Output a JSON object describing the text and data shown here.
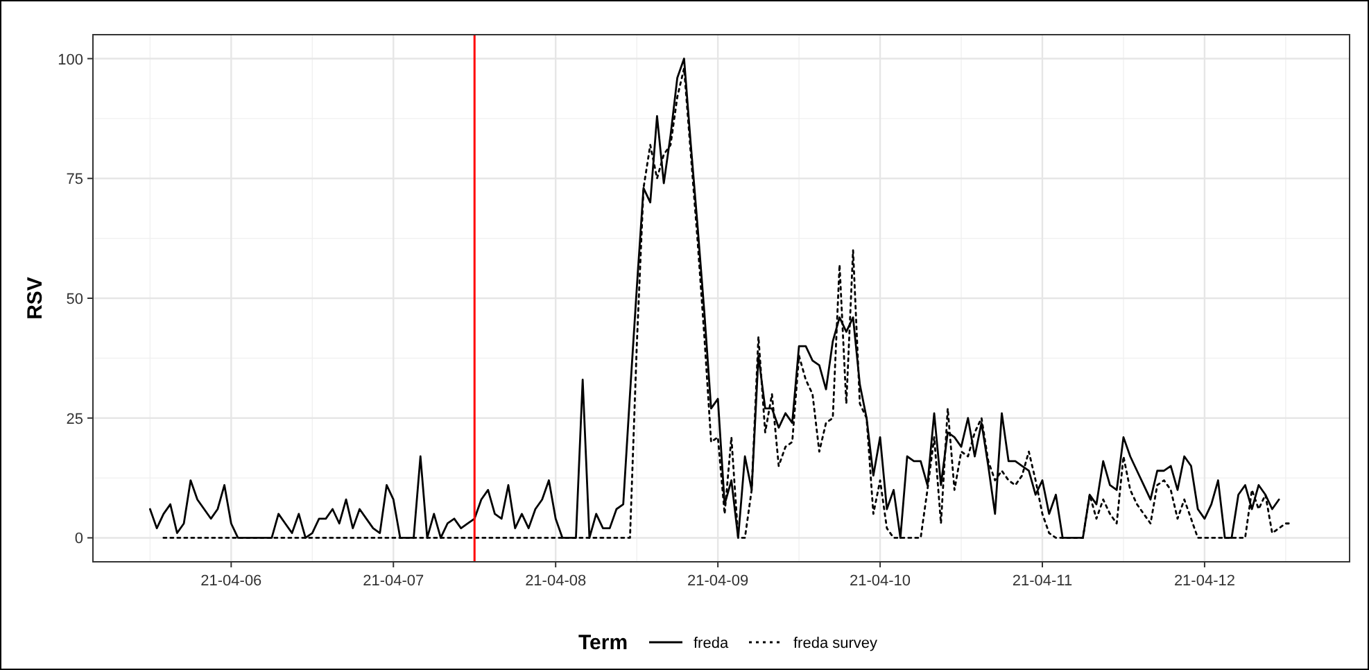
{
  "chart_data": {
    "type": "line",
    "ylabel": "RSV",
    "legend_title": "Term",
    "legend": "bottom",
    "grid": true,
    "marker": "none",
    "xlim": [
      "--04-05T03:33",
      "--04-12T21:27"
    ],
    "xticks": [
      {
        "value": "--04-06",
        "label": "21-04-06"
      },
      {
        "value": "--04-07",
        "label": "21-04-07"
      },
      {
        "value": "--04-08",
        "label": "21-04-08"
      },
      {
        "value": "--04-09",
        "label": "21-04-09"
      },
      {
        "value": "--04-10",
        "label": "21-04-10"
      },
      {
        "value": "--04-11",
        "label": "21-04-11"
      },
      {
        "value": "--04-12",
        "label": "21-04-12"
      }
    ],
    "ylim": [
      -5,
      105
    ],
    "yticks": [
      0,
      25,
      50,
      75,
      100
    ],
    "ref_lines": [
      {
        "axis": "x",
        "value": "--04-07T12:00",
        "color": "#ff0000"
      }
    ],
    "series": [
      {
        "name": "freda",
        "color": "#000000",
        "line_style": "solid",
        "x": [
          "--04-05T12:00",
          "--04-05T13:00",
          "--04-05T14:00",
          "--04-05T15:00",
          "--04-05T16:00",
          "--04-05T17:00",
          "--04-05T18:00",
          "--04-05T19:00",
          "--04-05T20:00",
          "--04-05T21:00",
          "--04-05T22:00",
          "--04-05T23:00",
          "--04-06T00:00",
          "--04-06T01:00",
          "--04-06T06:00",
          "--04-06T07:00",
          "--04-06T08:00",
          "--04-06T09:00",
          "--04-06T10:00",
          "--04-06T11:00",
          "--04-06T12:00",
          "--04-06T13:00",
          "--04-06T14:00",
          "--04-06T15:00",
          "--04-06T16:00",
          "--04-06T17:00",
          "--04-06T18:00",
          "--04-06T19:00",
          "--04-06T20:00",
          "--04-06T21:00",
          "--04-06T22:00",
          "--04-06T23:00",
          "--04-07T00:00",
          "--04-07T01:00",
          "--04-07T03:00",
          "--04-07T04:00",
          "--04-07T05:00",
          "--04-07T06:00",
          "--04-07T07:00",
          "--04-07T08:00",
          "--04-07T09:00",
          "--04-07T10:00",
          "--04-07T11:00",
          "--04-07T12:00",
          "--04-07T13:00",
          "--04-07T14:00",
          "--04-07T15:00",
          "--04-07T16:00",
          "--04-07T17:00",
          "--04-07T18:00",
          "--04-07T19:00",
          "--04-07T20:00",
          "--04-07T21:00",
          "--04-07T22:00",
          "--04-07T23:00",
          "--04-08T00:00",
          "--04-08T01:00",
          "--04-08T03:00",
          "--04-08T04:00",
          "--04-08T05:00",
          "--04-08T06:00",
          "--04-08T07:00",
          "--04-08T08:00",
          "--04-08T09:00",
          "--04-08T10:00",
          "--04-08T11:00",
          "--04-08T12:00",
          "--04-08T13:00",
          "--04-08T14:00",
          "--04-08T15:00",
          "--04-08T16:00",
          "--04-08T17:00",
          "--04-08T18:00",
          "--04-08T19:00",
          "--04-08T20:00",
          "--04-08T21:00",
          "--04-08T22:00",
          "--04-08T23:00",
          "--04-09T00:00",
          "--04-09T01:00",
          "--04-09T02:00",
          "--04-09T03:00",
          "--04-09T04:00",
          "--04-09T05:00",
          "--04-09T06:00",
          "--04-09T07:00",
          "--04-09T08:00",
          "--04-09T09:00",
          "--04-09T10:00",
          "--04-09T11:00",
          "--04-09T12:00",
          "--04-09T13:00",
          "--04-09T14:00",
          "--04-09T15:00",
          "--04-09T16:00",
          "--04-09T17:00",
          "--04-09T18:00",
          "--04-09T19:00",
          "--04-09T20:00",
          "--04-09T21:00",
          "--04-09T22:00",
          "--04-09T23:00",
          "--04-10T00:00",
          "--04-10T01:00",
          "--04-10T02:00",
          "--04-10T03:00",
          "--04-10T04:00",
          "--04-10T05:00",
          "--04-10T06:00",
          "--04-10T07:00",
          "--04-10T08:00",
          "--04-10T09:00",
          "--04-10T10:00",
          "--04-10T11:00",
          "--04-10T12:00",
          "--04-10T13:00",
          "--04-10T14:00",
          "--04-10T15:00",
          "--04-10T16:00",
          "--04-10T17:00",
          "--04-10T18:00",
          "--04-10T19:00",
          "--04-10T20:00",
          "--04-10T21:00",
          "--04-10T22:00",
          "--04-10T23:00",
          "--04-11T00:00",
          "--04-11T01:00",
          "--04-11T02:00",
          "--04-11T03:00",
          "--04-11T06:00",
          "--04-11T07:00",
          "--04-11T08:00",
          "--04-11T09:00",
          "--04-11T10:00",
          "--04-11T11:00",
          "--04-11T12:00",
          "--04-11T13:00",
          "--04-11T14:00",
          "--04-11T15:00",
          "--04-11T16:00",
          "--04-11T17:00",
          "--04-11T18:00",
          "--04-11T19:00",
          "--04-11T20:00",
          "--04-11T21:00",
          "--04-11T22:00",
          "--04-11T23:00",
          "--04-12T00:00",
          "--04-12T01:00",
          "--04-12T02:00",
          "--04-12T03:00",
          "--04-12T04:00",
          "--04-12T05:00",
          "--04-12T06:00",
          "--04-12T07:00",
          "--04-12T08:00",
          "--04-12T09:00",
          "--04-12T10:00",
          "--04-12T11:00"
        ],
        "values": [
          6,
          2,
          5,
          7,
          1,
          3,
          12,
          8,
          6,
          4,
          6,
          11,
          3,
          0,
          0,
          5,
          3,
          1,
          5,
          0,
          1,
          4,
          4,
          6,
          3,
          8,
          2,
          6,
          4,
          2,
          1,
          11,
          8,
          0,
          0,
          17,
          0,
          5,
          0,
          3,
          4,
          2,
          3,
          4,
          8,
          10,
          5,
          4,
          11,
          2,
          5,
          2,
          6,
          8,
          12,
          4,
          0,
          0,
          33,
          0,
          5,
          2,
          2,
          6,
          7,
          30,
          52,
          73,
          70,
          88,
          74,
          84,
          96,
          100,
          82,
          65,
          47,
          27,
          29,
          7,
          12,
          0,
          17,
          10,
          38,
          27,
          27,
          23,
          26,
          24,
          40,
          40,
          37,
          36,
          31,
          41,
          46,
          43,
          46,
          32,
          25,
          13,
          21,
          6,
          10,
          0,
          17,
          16,
          16,
          11,
          26,
          11,
          22,
          21,
          19,
          25,
          17,
          24,
          15,
          5,
          26,
          16,
          16,
          15,
          14,
          9,
          12,
          5,
          9,
          0,
          0,
          9,
          7,
          16,
          11,
          10,
          21,
          17,
          14,
          11,
          8,
          14,
          14,
          15,
          10,
          17,
          15,
          6,
          4,
          7,
          12,
          0,
          0,
          9,
          11,
          6,
          11,
          9,
          6,
          8
        ]
      },
      {
        "name": "freda survey",
        "color": "#000000",
        "line_style": "dotted",
        "x": [
          "--04-05T14:00",
          "--04-08T11:00",
          "--04-08T12:00",
          "--04-08T13:00",
          "--04-08T14:00",
          "--04-08T15:00",
          "--04-08T16:00",
          "--04-08T17:00",
          "--04-08T18:00",
          "--04-08T19:00",
          "--04-08T20:00",
          "--04-08T21:00",
          "--04-08T22:00",
          "--04-08T23:00",
          "--04-09T00:00",
          "--04-09T01:00",
          "--04-09T02:00",
          "--04-09T03:00",
          "--04-09T04:00",
          "--04-09T05:00",
          "--04-09T06:00",
          "--04-09T07:00",
          "--04-09T08:00",
          "--04-09T09:00",
          "--04-09T10:00",
          "--04-09T11:00",
          "--04-09T12:00",
          "--04-09T13:00",
          "--04-09T14:00",
          "--04-09T15:00",
          "--04-09T16:00",
          "--04-09T17:00",
          "--04-09T18:00",
          "--04-09T19:00",
          "--04-09T20:00",
          "--04-09T21:00",
          "--04-09T22:00",
          "--04-09T23:00",
          "--04-10T00:00",
          "--04-10T01:00",
          "--04-10T02:00",
          "--04-10T06:00",
          "--04-10T07:00",
          "--04-10T08:00",
          "--04-10T09:00",
          "--04-10T10:00",
          "--04-10T11:00",
          "--04-10T12:00",
          "--04-10T13:00",
          "--04-10T14:00",
          "--04-10T15:00",
          "--04-10T16:00",
          "--04-10T17:00",
          "--04-10T18:00",
          "--04-10T19:00",
          "--04-10T20:00",
          "--04-10T21:00",
          "--04-10T22:00",
          "--04-10T23:00",
          "--04-11T00:00",
          "--04-11T01:00",
          "--04-11T02:00",
          "--04-11T06:00",
          "--04-11T07:00",
          "--04-11T08:00",
          "--04-11T09:00",
          "--04-11T10:00",
          "--04-11T11:00",
          "--04-11T12:00",
          "--04-11T13:00",
          "--04-11T14:00",
          "--04-11T15:00",
          "--04-11T16:00",
          "--04-11T17:00",
          "--04-11T18:00",
          "--04-11T19:00",
          "--04-11T20:00",
          "--04-11T21:00",
          "--04-11T22:00",
          "--04-11T23:00",
          "--04-12T06:00",
          "--04-12T07:00",
          "--04-12T08:00",
          "--04-12T09:00",
          "--04-12T10:00",
          "--04-12T11:00",
          "--04-12T12:00",
          "--04-12T13:00"
        ],
        "values": [
          0,
          0,
          40,
          73,
          82,
          75,
          80,
          82,
          92,
          98,
          80,
          62,
          42,
          20,
          21,
          5,
          21,
          0,
          0,
          10,
          42,
          22,
          30,
          15,
          19,
          20,
          38,
          33,
          30,
          18,
          24,
          25,
          57,
          28,
          60,
          28,
          25,
          5,
          12,
          2,
          0,
          0,
          10,
          21,
          3,
          27,
          10,
          18,
          17,
          22,
          25,
          16,
          12,
          14,
          12,
          11,
          13,
          18,
          12,
          5,
          1,
          0,
          0,
          9,
          4,
          8,
          5,
          3,
          17,
          10,
          7,
          5,
          3,
          11,
          12,
          10,
          4,
          8,
          4,
          0,
          0,
          10,
          6,
          9,
          1,
          2,
          3,
          3
        ]
      }
    ]
  }
}
